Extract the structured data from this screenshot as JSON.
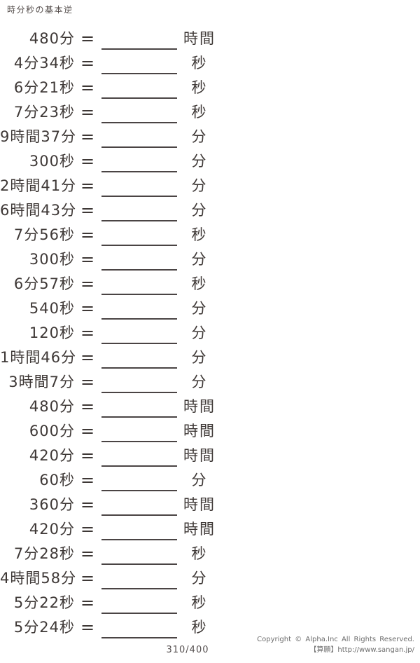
{
  "header": {
    "title": "時分秒の基本逆"
  },
  "equals": "=",
  "problems": [
    {
      "value": "480分",
      "unit": "時間"
    },
    {
      "value": "4分34秒",
      "unit": "秒"
    },
    {
      "value": "6分21秒",
      "unit": "秒"
    },
    {
      "value": "7分23秒",
      "unit": "秒"
    },
    {
      "value": "9時間37分",
      "unit": "分"
    },
    {
      "value": "300秒",
      "unit": "分"
    },
    {
      "value": "2時間41分",
      "unit": "分"
    },
    {
      "value": "6時間43分",
      "unit": "分"
    },
    {
      "value": "7分56秒",
      "unit": "秒"
    },
    {
      "value": "300秒",
      "unit": "分"
    },
    {
      "value": "6分57秒",
      "unit": "秒"
    },
    {
      "value": "540秒",
      "unit": "分"
    },
    {
      "value": "120秒",
      "unit": "分"
    },
    {
      "value": "1時間46分",
      "unit": "分"
    },
    {
      "value": "3時間7分",
      "unit": "分"
    },
    {
      "value": "480分",
      "unit": "時間"
    },
    {
      "value": "600分",
      "unit": "時間"
    },
    {
      "value": "420分",
      "unit": "時間"
    },
    {
      "value": "60秒",
      "unit": "分"
    },
    {
      "value": "360分",
      "unit": "時間"
    },
    {
      "value": "420分",
      "unit": "時間"
    },
    {
      "value": "7分28秒",
      "unit": "秒"
    },
    {
      "value": "4時間58分",
      "unit": "分"
    },
    {
      "value": "5分22秒",
      "unit": "秒"
    },
    {
      "value": "5分24秒",
      "unit": "秒"
    }
  ],
  "footer": {
    "page_number": "310/400",
    "copyright_line1": "Copyright ©  Alpha.Inc  All  Rights  Reserved.",
    "copyright_line2": "【算願】http://www.sangan.jp/"
  },
  "colors": {
    "text": "#3e3836",
    "blank_line": "#4a4444",
    "muted": "#6d6d6d",
    "background": "#ffffff"
  }
}
